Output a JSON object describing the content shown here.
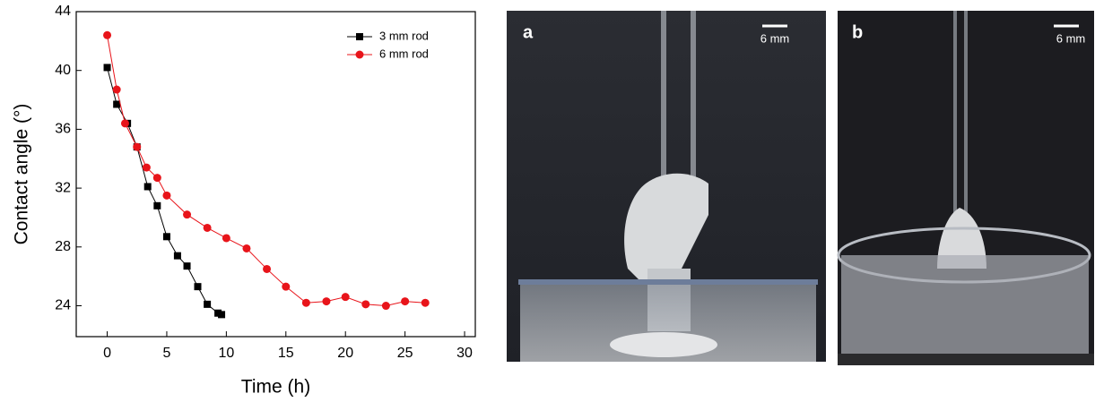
{
  "chart_data": {
    "type": "line",
    "xlabel": "Time (h)",
    "ylabel": "Contact angle (°)",
    "xlim": [
      -2.6,
      30.9
    ],
    "ylim": [
      21.9,
      44
    ],
    "xticks": [
      0,
      5,
      10,
      15,
      20,
      25,
      30
    ],
    "yticks": [
      24,
      28,
      32,
      36,
      40,
      44
    ],
    "legend": "upper right",
    "series": [
      {
        "name": "3 mm rod",
        "color": "#000000",
        "marker": "square",
        "x": [
          0,
          0.8,
          1.7,
          2.5,
          3.4,
          4.2,
          5,
          5.9,
          6.7,
          7.6,
          8.4,
          9.3,
          9.6
        ],
        "values": [
          40.2,
          37.7,
          36.4,
          34.8,
          32.1,
          30.8,
          28.7,
          27.4,
          26.7,
          25.3,
          24.1,
          23.5,
          23.4
        ]
      },
      {
        "name": "6 mm rod",
        "color": "#e8141a",
        "marker": "circle",
        "x": [
          0,
          0.8,
          1.5,
          2.5,
          3.3,
          4.2,
          5,
          6.7,
          8.4,
          10,
          11.7,
          13.4,
          15,
          16.7,
          18.4,
          20,
          21.7,
          23.4,
          25,
          26.7
        ],
        "values": [
          42.4,
          38.7,
          36.4,
          34.8,
          33.4,
          32.7,
          31.5,
          30.2,
          29.3,
          28.6,
          27.9,
          26.5,
          25.3,
          24.2,
          24.3,
          24.6,
          24.1,
          24.0,
          24.3,
          24.2
        ]
      }
    ]
  },
  "photos": [
    {
      "label": "a",
      "scale_bar": "6 mm"
    },
    {
      "label": "b",
      "scale_bar": "6 mm"
    }
  ]
}
